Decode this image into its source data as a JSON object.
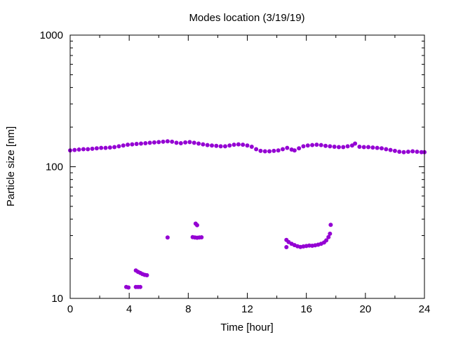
{
  "chart_data": {
    "type": "scatter",
    "title": "Modes location (3/19/19)",
    "xlabel": "Time [hour]",
    "ylabel": "Particle size [nm]",
    "xlim": [
      0,
      24
    ],
    "ylim": [
      10,
      1000
    ],
    "yscale": "log",
    "grid": false,
    "legend": "none",
    "marker_color": "#9400d3",
    "x_ticks": [
      "0",
      "4",
      "8",
      "12",
      "16",
      "20",
      "24"
    ],
    "y_ticks": [
      "10",
      "100",
      "1000"
    ],
    "series": [
      {
        "values": [
          {
            "x": 0.0,
            "y": 133
          },
          {
            "x": 0.3,
            "y": 134
          },
          {
            "x": 0.6,
            "y": 135
          },
          {
            "x": 0.9,
            "y": 136
          },
          {
            "x": 1.2,
            "y": 136
          },
          {
            "x": 1.5,
            "y": 137
          },
          {
            "x": 1.8,
            "y": 138
          },
          {
            "x": 2.1,
            "y": 139
          },
          {
            "x": 2.4,
            "y": 139
          },
          {
            "x": 2.7,
            "y": 140
          },
          {
            "x": 3.0,
            "y": 141
          },
          {
            "x": 3.3,
            "y": 143
          },
          {
            "x": 3.6,
            "y": 145
          },
          {
            "x": 3.9,
            "y": 147
          },
          {
            "x": 4.2,
            "y": 148
          },
          {
            "x": 4.5,
            "y": 149
          },
          {
            "x": 4.8,
            "y": 150
          },
          {
            "x": 5.1,
            "y": 151
          },
          {
            "x": 5.4,
            "y": 152
          },
          {
            "x": 5.7,
            "y": 153
          },
          {
            "x": 6.0,
            "y": 154
          },
          {
            "x": 6.3,
            "y": 155
          },
          {
            "x": 6.6,
            "y": 156
          },
          {
            "x": 6.9,
            "y": 155
          },
          {
            "x": 7.2,
            "y": 152
          },
          {
            "x": 7.5,
            "y": 151
          },
          {
            "x": 7.8,
            "y": 153
          },
          {
            "x": 8.1,
            "y": 154
          },
          {
            "x": 8.4,
            "y": 152
          },
          {
            "x": 8.7,
            "y": 150
          },
          {
            "x": 9.0,
            "y": 148
          },
          {
            "x": 9.3,
            "y": 146
          },
          {
            "x": 9.6,
            "y": 145
          },
          {
            "x": 9.9,
            "y": 144
          },
          {
            "x": 10.2,
            "y": 143
          },
          {
            "x": 10.5,
            "y": 143
          },
          {
            "x": 10.8,
            "y": 145
          },
          {
            "x": 11.1,
            "y": 147
          },
          {
            "x": 11.4,
            "y": 148
          },
          {
            "x": 11.7,
            "y": 147
          },
          {
            "x": 12.0,
            "y": 145
          },
          {
            "x": 12.3,
            "y": 142
          },
          {
            "x": 12.6,
            "y": 136
          },
          {
            "x": 12.9,
            "y": 132
          },
          {
            "x": 13.2,
            "y": 131
          },
          {
            "x": 13.5,
            "y": 131
          },
          {
            "x": 13.8,
            "y": 132
          },
          {
            "x": 14.1,
            "y": 133
          },
          {
            "x": 14.4,
            "y": 136
          },
          {
            "x": 14.7,
            "y": 139
          },
          {
            "x": 15.0,
            "y": 135
          },
          {
            "x": 15.2,
            "y": 133
          },
          {
            "x": 15.5,
            "y": 138
          },
          {
            "x": 15.8,
            "y": 143
          },
          {
            "x": 16.1,
            "y": 145
          },
          {
            "x": 16.4,
            "y": 146
          },
          {
            "x": 16.7,
            "y": 147
          },
          {
            "x": 17.0,
            "y": 146
          },
          {
            "x": 17.3,
            "y": 144
          },
          {
            "x": 17.6,
            "y": 143
          },
          {
            "x": 17.9,
            "y": 142
          },
          {
            "x": 18.2,
            "y": 141
          },
          {
            "x": 18.5,
            "y": 141
          },
          {
            "x": 18.8,
            "y": 143
          },
          {
            "x": 19.1,
            "y": 145
          },
          {
            "x": 19.3,
            "y": 150
          },
          {
            "x": 19.6,
            "y": 142
          },
          {
            "x": 19.9,
            "y": 141
          },
          {
            "x": 20.2,
            "y": 141
          },
          {
            "x": 20.5,
            "y": 140
          },
          {
            "x": 20.8,
            "y": 139
          },
          {
            "x": 21.1,
            "y": 138
          },
          {
            "x": 21.4,
            "y": 136
          },
          {
            "x": 21.7,
            "y": 134
          },
          {
            "x": 22.0,
            "y": 132
          },
          {
            "x": 22.3,
            "y": 130
          },
          {
            "x": 22.6,
            "y": 129
          },
          {
            "x": 22.9,
            "y": 130
          },
          {
            "x": 23.2,
            "y": 131
          },
          {
            "x": 23.5,
            "y": 130
          },
          {
            "x": 23.8,
            "y": 129
          },
          {
            "x": 24.0,
            "y": 129
          },
          {
            "x": 3.8,
            "y": 12.2
          },
          {
            "x": 3.95,
            "y": 12.1
          },
          {
            "x": 4.45,
            "y": 12.2
          },
          {
            "x": 4.6,
            "y": 12.2
          },
          {
            "x": 4.75,
            "y": 12.2
          },
          {
            "x": 4.45,
            "y": 16.3
          },
          {
            "x": 4.6,
            "y": 15.9
          },
          {
            "x": 4.75,
            "y": 15.6
          },
          {
            "x": 4.9,
            "y": 15.3
          },
          {
            "x": 5.05,
            "y": 15.1
          },
          {
            "x": 5.2,
            "y": 15.0
          },
          {
            "x": 6.6,
            "y": 29.0
          },
          {
            "x": 8.3,
            "y": 29.2
          },
          {
            "x": 8.45,
            "y": 29.0
          },
          {
            "x": 8.6,
            "y": 28.9
          },
          {
            "x": 8.75,
            "y": 29.0
          },
          {
            "x": 8.9,
            "y": 29.1
          },
          {
            "x": 8.5,
            "y": 37.0
          },
          {
            "x": 8.6,
            "y": 36.0
          },
          {
            "x": 14.65,
            "y": 27.8
          },
          {
            "x": 14.65,
            "y": 24.5
          },
          {
            "x": 14.8,
            "y": 26.8
          },
          {
            "x": 15.0,
            "y": 26.0
          },
          {
            "x": 15.2,
            "y": 25.4
          },
          {
            "x": 15.4,
            "y": 24.9
          },
          {
            "x": 15.6,
            "y": 24.6
          },
          {
            "x": 15.8,
            "y": 24.8
          },
          {
            "x": 16.0,
            "y": 25.0
          },
          {
            "x": 16.2,
            "y": 25.2
          },
          {
            "x": 16.4,
            "y": 25.1
          },
          {
            "x": 16.6,
            "y": 25.3
          },
          {
            "x": 16.8,
            "y": 25.6
          },
          {
            "x": 17.0,
            "y": 26.0
          },
          {
            "x": 17.2,
            "y": 26.6
          },
          {
            "x": 17.35,
            "y": 27.6
          },
          {
            "x": 17.5,
            "y": 29.2
          },
          {
            "x": 17.6,
            "y": 31.0
          },
          {
            "x": 17.65,
            "y": 36.2
          }
        ]
      }
    ]
  }
}
